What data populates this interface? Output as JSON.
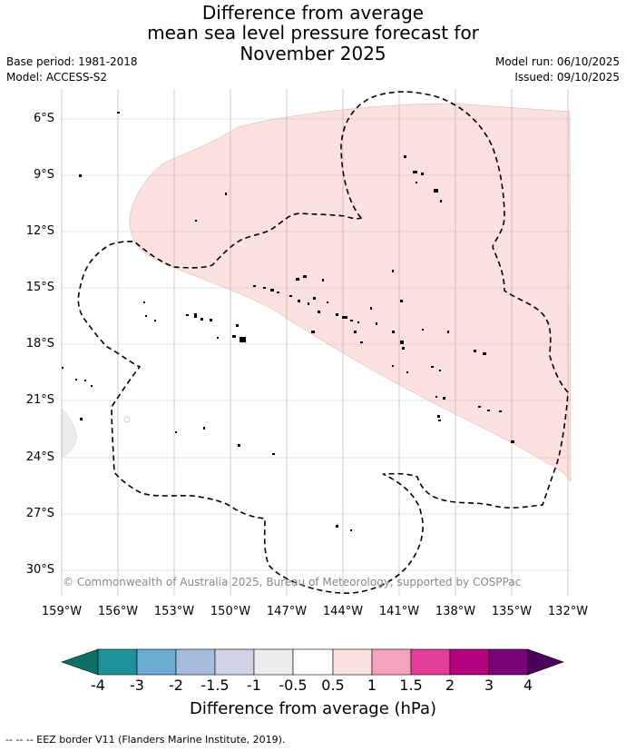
{
  "header": {
    "title_line1": "Difference from average",
    "title_line2": "mean sea level pressure forecast for",
    "title_line3": "November 2025",
    "base_period": "Base period: 1981-2018",
    "model": "Model: ACCESS-S2",
    "model_run": "Model run: 06/10/2025",
    "issued": "Issued: 09/10/2025"
  },
  "map": {
    "lat_labels": [
      "6°S",
      "9°S",
      "12°S",
      "15°S",
      "18°S",
      "21°S",
      "24°S",
      "27°S",
      "30°S"
    ],
    "lon_labels": [
      "159°W",
      "156°W",
      "153°W",
      "150°W",
      "147°W",
      "144°W",
      "141°W",
      "138°W",
      "135°W",
      "132°W"
    ],
    "copyright": "© Commonwealth of Australia 2025, Bureau of Meteorology, supported by COSPPac",
    "colors": {
      "positive_anomaly": "#fde0e0",
      "negative_anomaly": "#ececee",
      "grid": "#999999"
    }
  },
  "colorbar": {
    "ticks": [
      "-4",
      "-3",
      "-2",
      "-1.5",
      "-1",
      "-0.5",
      "0.5",
      "1",
      "1.5",
      "2",
      "3",
      "4"
    ],
    "colors": [
      "#0e6f66",
      "#1f9199",
      "#6badd2",
      "#a6bcdd",
      "#d1d2e6",
      "#ececee",
      "#ffffff",
      "#fde0e0",
      "#f7a2bc",
      "#e03e9a",
      "#b3007e",
      "#7a0177",
      "#4a0059"
    ],
    "title": "Difference from average (hPa)"
  },
  "footnote": "--  --  -- EEZ border V11 (Flanders Marine Institute, 2019)."
}
